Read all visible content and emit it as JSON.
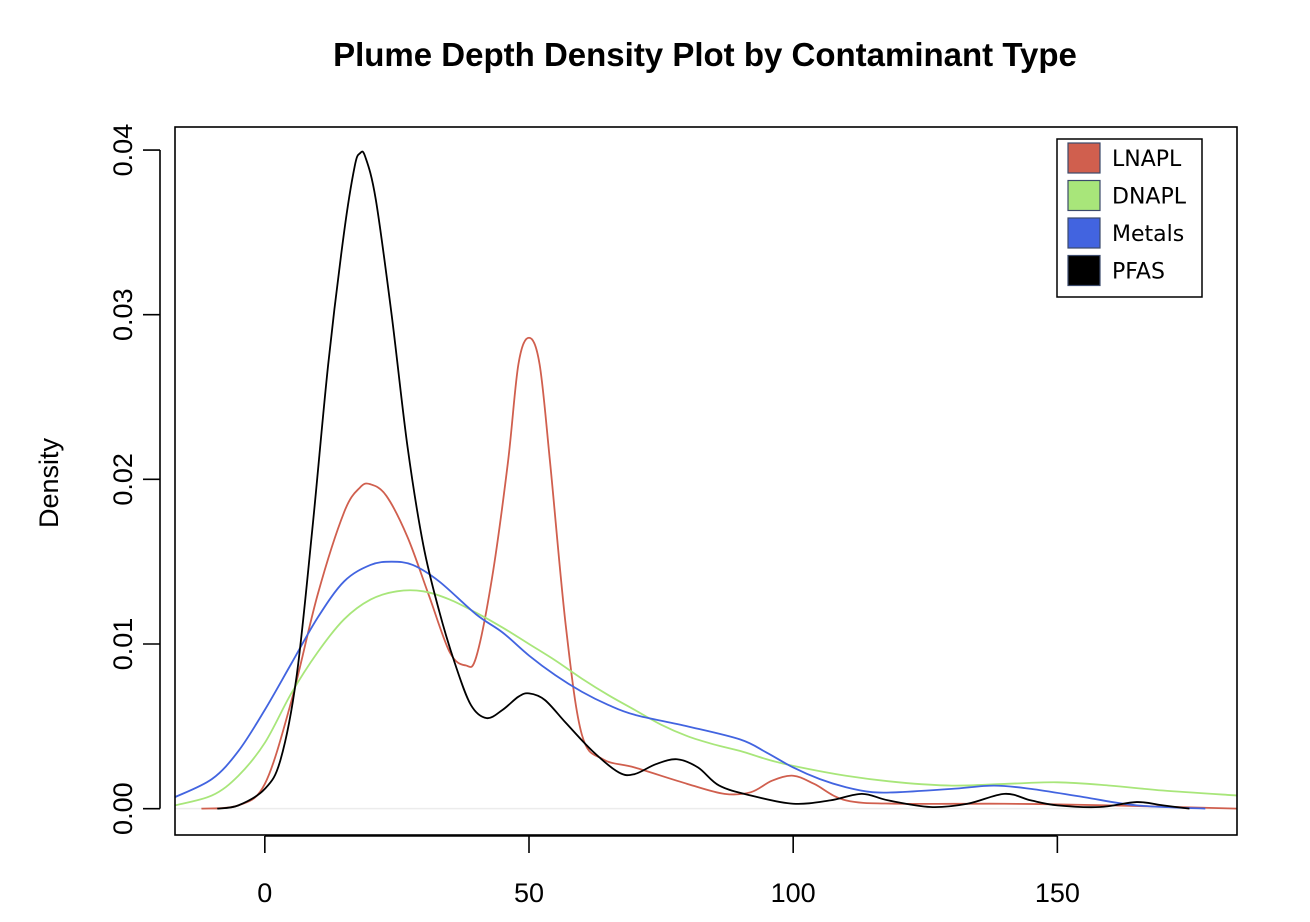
{
  "chart_data": {
    "type": "line",
    "title": "Plume Depth Density Plot by Contaminant Type",
    "xlabel": "",
    "ylabel": "Density",
    "xlim": [
      -17,
      184
    ],
    "ylim": [
      -0.0016,
      0.0414
    ],
    "x_ticks": [
      0,
      50,
      100,
      150
    ],
    "x_tick_labels": [
      "0",
      "50",
      "100",
      "150"
    ],
    "y_ticks": [
      0,
      0.01,
      0.02,
      0.03,
      0.04
    ],
    "y_tick_labels": [
      "0.00",
      "0.01",
      "0.02",
      "0.03",
      "0.04"
    ],
    "grid": false,
    "legend": {
      "position": "top-right"
    },
    "series": [
      {
        "name": "LNAPL",
        "color": "#d05f4e",
        "points": [
          [
            -12,
            0
          ],
          [
            -5,
            0.0002
          ],
          [
            0,
            0.0015
          ],
          [
            5,
            0.0065
          ],
          [
            10,
            0.013
          ],
          [
            15,
            0.018
          ],
          [
            18,
            0.0195
          ],
          [
            20,
            0.0197
          ],
          [
            23,
            0.019
          ],
          [
            27,
            0.0165
          ],
          [
            31,
            0.013
          ],
          [
            35,
            0.0095
          ],
          [
            38,
            0.0087
          ],
          [
            40,
            0.0092
          ],
          [
            43,
            0.014
          ],
          [
            46,
            0.021
          ],
          [
            48,
            0.027
          ],
          [
            50,
            0.0286
          ],
          [
            52,
            0.027
          ],
          [
            54,
            0.021
          ],
          [
            57,
            0.011
          ],
          [
            60,
            0.0045
          ],
          [
            64,
            0.003
          ],
          [
            70,
            0.0025
          ],
          [
            80,
            0.0015
          ],
          [
            87,
            0.0009
          ],
          [
            92,
            0.001
          ],
          [
            96,
            0.0017
          ],
          [
            100,
            0.002
          ],
          [
            104,
            0.0015
          ],
          [
            110,
            0.0005
          ],
          [
            120,
            0.0003
          ],
          [
            140,
            0.0003
          ],
          [
            160,
            0.0002
          ],
          [
            184,
            0
          ]
        ]
      },
      {
        "name": "DNAPL",
        "color": "#a8e67a",
        "points": [
          [
            -17,
            0.0002
          ],
          [
            -10,
            0.0008
          ],
          [
            -5,
            0.002
          ],
          [
            0,
            0.004
          ],
          [
            5,
            0.007
          ],
          [
            10,
            0.0095
          ],
          [
            15,
            0.0115
          ],
          [
            20,
            0.0127
          ],
          [
            25,
            0.0132
          ],
          [
            30,
            0.0132
          ],
          [
            35,
            0.0127
          ],
          [
            40,
            0.0119
          ],
          [
            45,
            0.011
          ],
          [
            50,
            0.01
          ],
          [
            55,
            0.009
          ],
          [
            60,
            0.0079
          ],
          [
            65,
            0.0069
          ],
          [
            70,
            0.006
          ],
          [
            75,
            0.0051
          ],
          [
            80,
            0.0044
          ],
          [
            85,
            0.0039
          ],
          [
            90,
            0.0035
          ],
          [
            95,
            0.003
          ],
          [
            100,
            0.0026
          ],
          [
            110,
            0.002
          ],
          [
            120,
            0.0016
          ],
          [
            130,
            0.0014
          ],
          [
            140,
            0.0015
          ],
          [
            150,
            0.0016
          ],
          [
            160,
            0.0014
          ],
          [
            170,
            0.0011
          ],
          [
            184,
            0.0008
          ]
        ]
      },
      {
        "name": "Metals",
        "color": "#4264e0",
        "points": [
          [
            -17,
            0.0007
          ],
          [
            -10,
            0.0018
          ],
          [
            -5,
            0.0035
          ],
          [
            0,
            0.006
          ],
          [
            5,
            0.0088
          ],
          [
            10,
            0.0116
          ],
          [
            15,
            0.0138
          ],
          [
            20,
            0.0148
          ],
          [
            24,
            0.015
          ],
          [
            28,
            0.0148
          ],
          [
            33,
            0.0138
          ],
          [
            40,
            0.0118
          ],
          [
            45,
            0.0107
          ],
          [
            50,
            0.0093
          ],
          [
            55,
            0.0081
          ],
          [
            60,
            0.0071
          ],
          [
            65,
            0.0063
          ],
          [
            70,
            0.0057
          ],
          [
            80,
            0.005
          ],
          [
            90,
            0.0042
          ],
          [
            95,
            0.0034
          ],
          [
            100,
            0.0025
          ],
          [
            105,
            0.0018
          ],
          [
            110,
            0.0013
          ],
          [
            115,
            0.001
          ],
          [
            120,
            0.001
          ],
          [
            130,
            0.0012
          ],
          [
            138,
            0.0014
          ],
          [
            145,
            0.0012
          ],
          [
            155,
            0.0007
          ],
          [
            165,
            0.0002
          ],
          [
            178,
            0
          ]
        ]
      },
      {
        "name": "PFAS",
        "color": "#000000",
        "points": [
          [
            -9,
            0
          ],
          [
            -5,
            0.0002
          ],
          [
            0,
            0.0012
          ],
          [
            3,
            0.003
          ],
          [
            6,
            0.008
          ],
          [
            9,
            0.017
          ],
          [
            12,
            0.027
          ],
          [
            15,
            0.035
          ],
          [
            17,
            0.039
          ],
          [
            18,
            0.0398
          ],
          [
            19,
            0.0396
          ],
          [
            21,
            0.037
          ],
          [
            24,
            0.03
          ],
          [
            27,
            0.022
          ],
          [
            30,
            0.016
          ],
          [
            33,
            0.012
          ],
          [
            36,
            0.0088
          ],
          [
            39,
            0.0063
          ],
          [
            42,
            0.0055
          ],
          [
            45,
            0.006
          ],
          [
            48,
            0.0068
          ],
          [
            50,
            0.007
          ],
          [
            53,
            0.0066
          ],
          [
            57,
            0.0052
          ],
          [
            62,
            0.0035
          ],
          [
            67,
            0.0022
          ],
          [
            70,
            0.0021
          ],
          [
            74,
            0.0027
          ],
          [
            78,
            0.003
          ],
          [
            82,
            0.0025
          ],
          [
            86,
            0.0014
          ],
          [
            92,
            0.0008
          ],
          [
            100,
            0.0003
          ],
          [
            107,
            0.0005
          ],
          [
            113,
            0.0009
          ],
          [
            118,
            0.0005
          ],
          [
            126,
            0.0001
          ],
          [
            133,
            0.0003
          ],
          [
            140,
            0.0009
          ],
          [
            145,
            0.0005
          ],
          [
            150,
            0.0002
          ],
          [
            158,
            0.0001
          ],
          [
            165,
            0.0004
          ],
          [
            170,
            0.0002
          ],
          [
            175,
            0
          ]
        ]
      }
    ]
  }
}
